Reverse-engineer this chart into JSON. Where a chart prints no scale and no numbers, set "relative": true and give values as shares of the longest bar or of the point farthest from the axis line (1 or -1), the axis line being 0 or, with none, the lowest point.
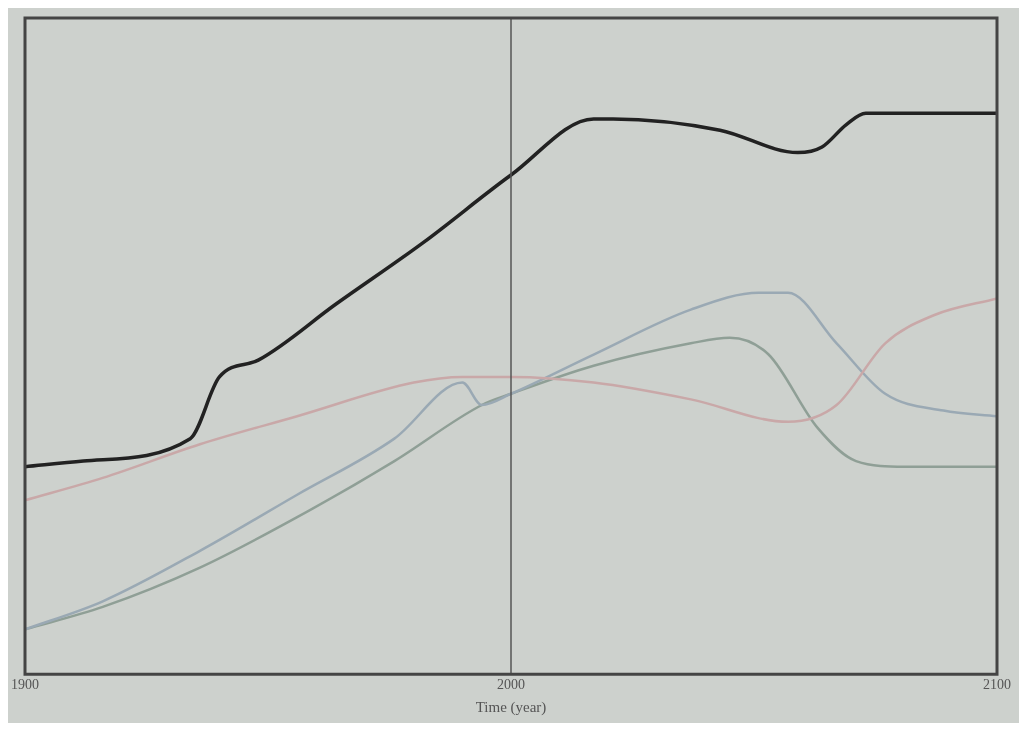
{
  "chart_data": {
    "type": "line",
    "xlabel": "Time (year)",
    "relative": true,
    "xlim": [
      1900,
      2100
    ],
    "xticks": [
      1900,
      2000,
      2100
    ],
    "grid": false,
    "legend": false,
    "marker": "none",
    "line_style": "solid",
    "ref_lines": [
      {
        "axis": "x",
        "value": 2000,
        "color": "#555555"
      }
    ],
    "series": [
      {
        "color": "#222222",
        "x": [
          1900,
          1912,
          1934,
          1940,
          1948,
          1964,
          1982,
          2000,
          2017,
          2021,
          2043,
          2059,
          2064,
          2069,
          2073,
          2100
        ],
        "values": [
          0.37,
          0.38,
          0.42,
          0.53,
          0.56,
          0.66,
          0.77,
          0.89,
          0.99,
          0.99,
          0.97,
          0.93,
          0.94,
          0.98,
          1.0,
          1.0
        ]
      },
      {
        "color": "#c9a8a8",
        "x": [
          1900,
          1916,
          1936,
          1956,
          1980,
          1990,
          2000,
          2017,
          2037,
          2057,
          2067,
          2077,
          2087,
          2100
        ],
        "values": [
          0.31,
          0.35,
          0.41,
          0.46,
          0.52,
          0.53,
          0.53,
          0.52,
          0.49,
          0.45,
          0.48,
          0.59,
          0.64,
          0.67
        ]
      },
      {
        "color": "#9aa9b4",
        "x": [
          1900,
          1916,
          1936,
          1956,
          1976,
          1990,
          1994,
          2000,
          2017,
          2037,
          2051,
          2057,
          2067,
          2077,
          2089,
          2100
        ],
        "values": [
          0.08,
          0.13,
          0.22,
          0.32,
          0.42,
          0.52,
          0.48,
          0.5,
          0.57,
          0.65,
          0.68,
          0.68,
          0.59,
          0.5,
          0.47,
          0.46
        ]
      },
      {
        "color": "#8f9f96",
        "x": [
          1900,
          1916,
          1936,
          1956,
          1976,
          1994,
          2000,
          2017,
          2037,
          2045,
          2053,
          2063,
          2071,
          2081,
          2100
        ],
        "values": [
          0.08,
          0.12,
          0.19,
          0.28,
          0.38,
          0.48,
          0.5,
          0.55,
          0.59,
          0.6,
          0.57,
          0.44,
          0.38,
          0.37,
          0.37
        ]
      }
    ]
  }
}
